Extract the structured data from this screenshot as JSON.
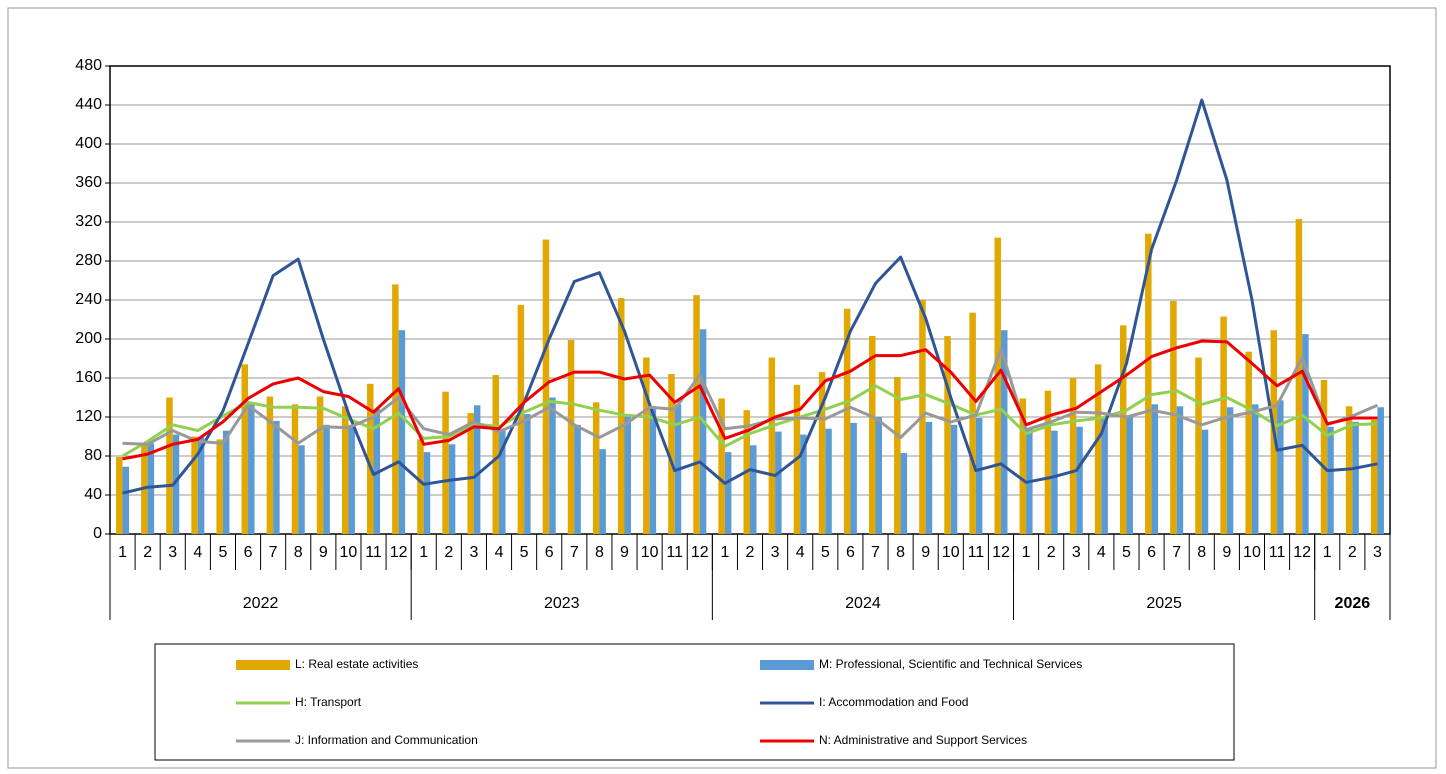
{
  "chart_data": {
    "type": "bar_line",
    "groups": [
      {
        "label": "2022",
        "categories": [
          "1",
          "2",
          "3",
          "4",
          "5",
          "6",
          "7",
          "8",
          "9",
          "10",
          "11",
          "12"
        ]
      },
      {
        "label": "2023",
        "categories": [
          "1",
          "2",
          "3",
          "4",
          "5",
          "6",
          "7",
          "8",
          "9",
          "10",
          "11",
          "12"
        ]
      },
      {
        "label": "2024",
        "categories": [
          "1",
          "2",
          "3",
          "4",
          "5",
          "6",
          "7",
          "8",
          "9",
          "10",
          "11",
          "12"
        ]
      },
      {
        "label": "2025",
        "categories": [
          "1",
          "2",
          "3",
          "4",
          "5",
          "6",
          "7",
          "8",
          "9",
          "10",
          "11",
          "12"
        ]
      },
      {
        "label": "2026",
        "categories": [
          "1",
          "2",
          "3"
        ]
      }
    ],
    "series": [
      {
        "name": "L: Real estate activities",
        "kind": "bar",
        "color": "#e0a800",
        "values": [
          79,
          91,
          140,
          100,
          97,
          174,
          141,
          133,
          141,
          131,
          154,
          256,
          97,
          146,
          124,
          163,
          235,
          302,
          199,
          135,
          242,
          181,
          164,
          245,
          139,
          127,
          181,
          153,
          166,
          231,
          203,
          161,
          240,
          203,
          227,
          304,
          139,
          147,
          160,
          174,
          214,
          308,
          239,
          181,
          223,
          187,
          209,
          323,
          158,
          131,
          117
        ]
      },
      {
        "name": "M: Professional, Scientific and Technical Services",
        "kind": "bar",
        "color": "#5b9bd5",
        "values": [
          69,
          93,
          102,
          99,
          106,
          133,
          116,
          91,
          112,
          112,
          128,
          209,
          84,
          92,
          132,
          107,
          123,
          140,
          112,
          87,
          120,
          129,
          133,
          210,
          84,
          91,
          105,
          102,
          108,
          114,
          120,
          83,
          115,
          112,
          119,
          209,
          108,
          106,
          110,
          120,
          121,
          133,
          131,
          107,
          130,
          133,
          137,
          205,
          110,
          115,
          130
        ]
      },
      {
        "name": "H: Transport",
        "kind": "line",
        "color": "#92d050",
        "values": [
          80,
          95,
          112,
          106,
          121,
          135,
          130,
          130,
          129,
          118,
          108,
          124,
          98,
          100,
          113,
          110,
          125,
          136,
          133,
          127,
          122,
          120,
          112,
          120,
          90,
          103,
          112,
          120,
          128,
          137,
          152,
          138,
          143,
          133,
          122,
          128,
          103,
          112,
          116,
          119,
          127,
          143,
          147,
          133,
          140,
          127,
          111,
          122,
          101,
          112,
          113
        ]
      },
      {
        "name": "I: Accommodation and Food",
        "kind": "line",
        "color": "#2f5597",
        "values": [
          42,
          48,
          50,
          82,
          126,
          195,
          265,
          282,
          200,
          124,
          61,
          74,
          51,
          55,
          58,
          80,
          135,
          200,
          259,
          268,
          208,
          133,
          65,
          74,
          52,
          66,
          60,
          80,
          140,
          208,
          257,
          284,
          221,
          140,
          65,
          72,
          53,
          58,
          65,
          103,
          175,
          292,
          363,
          445,
          363,
          240,
          86,
          91,
          65,
          67,
          72
        ]
      },
      {
        "name": "J: Information and Communication",
        "kind": "line",
        "color": "#999999",
        "values": [
          93,
          92,
          106,
          95,
          93,
          132,
          113,
          93,
          110,
          109,
          120,
          140,
          108,
          102,
          115,
          105,
          116,
          130,
          112,
          99,
          112,
          130,
          128,
          163,
          108,
          111,
          118,
          119,
          118,
          130,
          119,
          99,
          124,
          115,
          122,
          190,
          107,
          115,
          125,
          124,
          120,
          127,
          122,
          112,
          120,
          125,
          132,
          181,
          112,
          121,
          132
        ]
      },
      {
        "name": "N: Administrative and Support Services",
        "kind": "line",
        "color": "#ee0000",
        "values": [
          77,
          82,
          92,
          97,
          115,
          139,
          154,
          160,
          146,
          141,
          125,
          149,
          92,
          96,
          110,
          108,
          135,
          156,
          166,
          166,
          159,
          163,
          135,
          152,
          98,
          107,
          120,
          128,
          157,
          167,
          183,
          183,
          189,
          166,
          136,
          168,
          112,
          122,
          129,
          146,
          163,
          182,
          191,
          198,
          197,
          175,
          152,
          167,
          113,
          119,
          119
        ]
      }
    ],
    "ylim": [
      0,
      480
    ],
    "yticks": [
      0,
      40,
      80,
      120,
      160,
      200,
      240,
      280,
      320,
      360,
      400,
      440,
      480
    ],
    "grid": true,
    "legend": "bottom"
  }
}
